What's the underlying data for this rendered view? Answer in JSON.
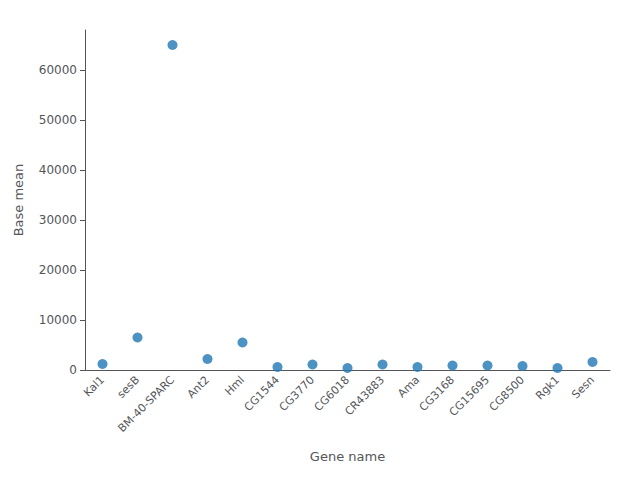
{
  "chart_data": {
    "type": "scatter",
    "categories": [
      "Kal1",
      "sesB",
      "BM-40-SPARC",
      "Ant2",
      "Hml",
      "CG1544",
      "CG3770",
      "CG6018",
      "CR43883",
      "Ama",
      "CG3168",
      "CG15695",
      "CG8500",
      "Rgk1",
      "Sesn"
    ],
    "values": [
      1200,
      6500,
      65000,
      2200,
      5500,
      600,
      1100,
      400,
      1100,
      600,
      900,
      900,
      800,
      400,
      1600
    ],
    "color": "#1f77b4",
    "xlabel": "Gene name",
    "ylabel": "Base mean",
    "ylim": [
      0,
      68000
    ],
    "yticks": [
      0,
      10000,
      20000,
      30000,
      40000,
      50000,
      60000
    ],
    "grid": false
  }
}
